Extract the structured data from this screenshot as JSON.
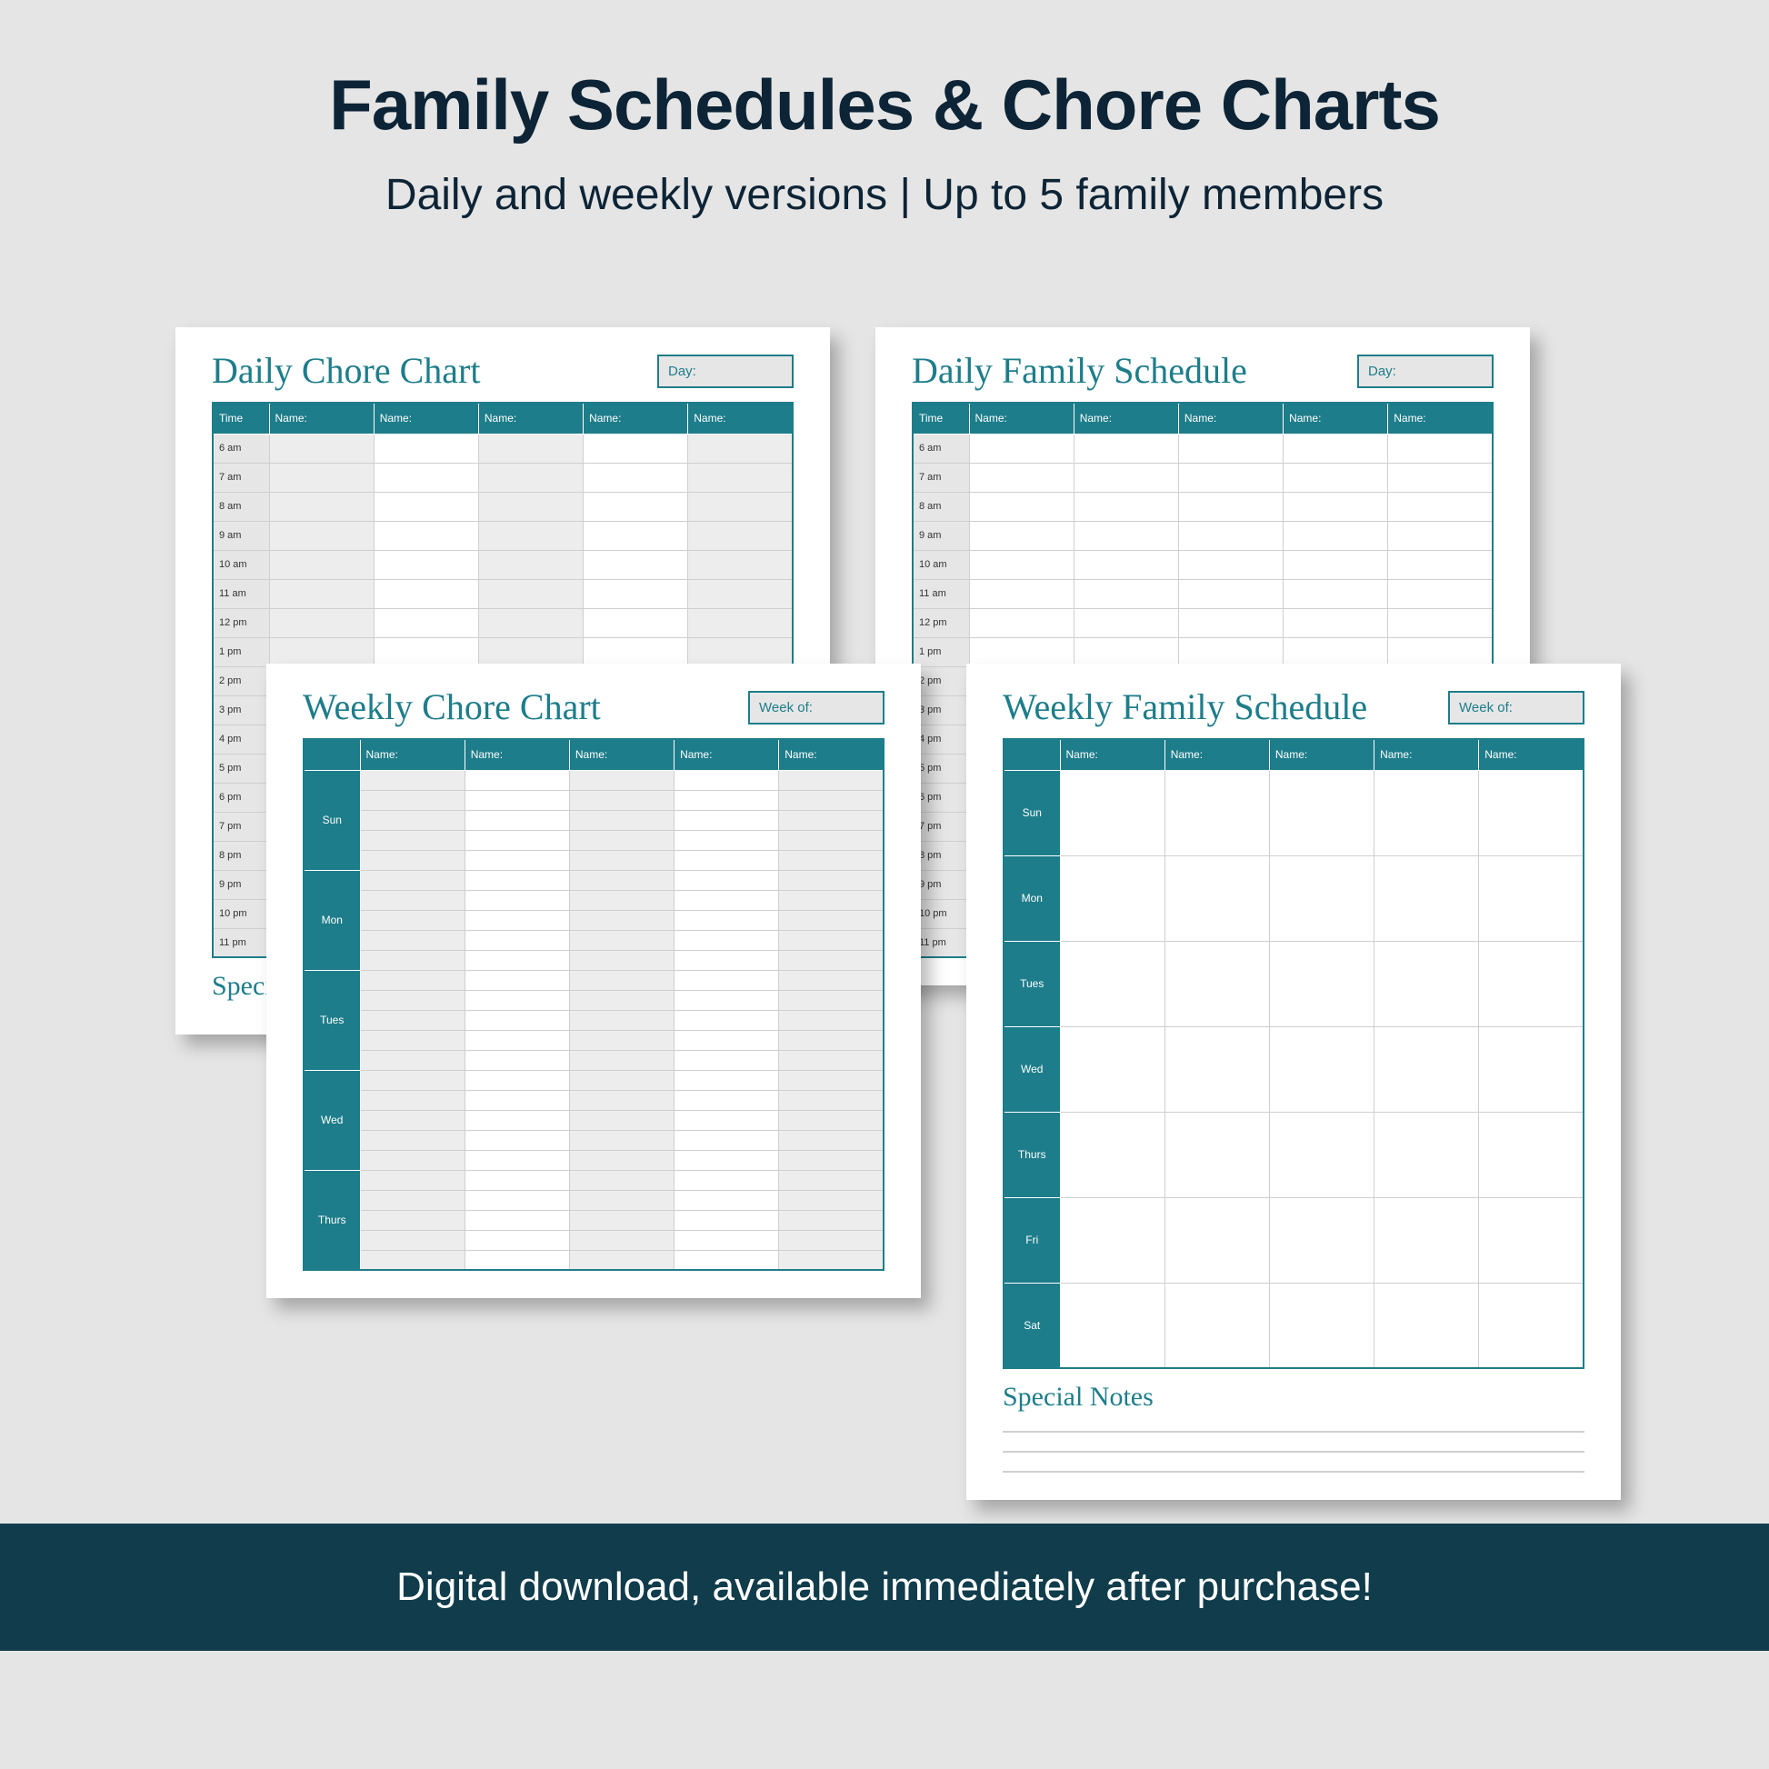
{
  "heading": {
    "title": "Family Schedules & Chore Charts",
    "subtitle": "Daily and weekly versions | Up to 5 family members"
  },
  "footer": "Digital download, available immediately after purchase!",
  "labels": {
    "time": "Time",
    "name": "Name:",
    "day": "Day:",
    "week_of": "Week of:",
    "special_notes": "Special Notes"
  },
  "colors": {
    "teal": "#1e7d8a",
    "dark_teal": "#103c4b",
    "page_bg": "#ffffff",
    "canvas_bg": "#e5e5e5",
    "grid": "#cfcfcf",
    "stripe": "#ededed",
    "time_bg": "#e6e6e6",
    "title_text": "#0d2436"
  },
  "times": [
    "6 am",
    "7 am",
    "8 am",
    "9 am",
    "10 am",
    "11 am",
    "12 pm",
    "1 pm",
    "2 pm",
    "3 pm",
    "4 pm",
    "5 pm",
    "6 pm",
    "7 pm",
    "8 pm",
    "9 pm",
    "10 pm",
    "11 pm"
  ],
  "days": [
    "Sun",
    "Mon",
    "Tues",
    "Wed",
    "Thurs",
    "Fri",
    "Sat"
  ],
  "cards": {
    "daily_chore": {
      "title": "Daily Chore Chart",
      "date_label": "Day:",
      "columns": 5,
      "striped": true
    },
    "daily_sched": {
      "title": "Daily Family Schedule",
      "date_label": "Day:",
      "columns": 5,
      "striped": false
    },
    "weekly_chore": {
      "title": "Weekly Chore Chart",
      "date_label": "Week of:",
      "columns": 5,
      "striped": true,
      "sublines": 5,
      "visible_days": 5
    },
    "weekly_sched": {
      "title": "Weekly Family Schedule",
      "date_label": "Week of:",
      "columns": 5,
      "striped": false,
      "visible_days": 7
    }
  }
}
